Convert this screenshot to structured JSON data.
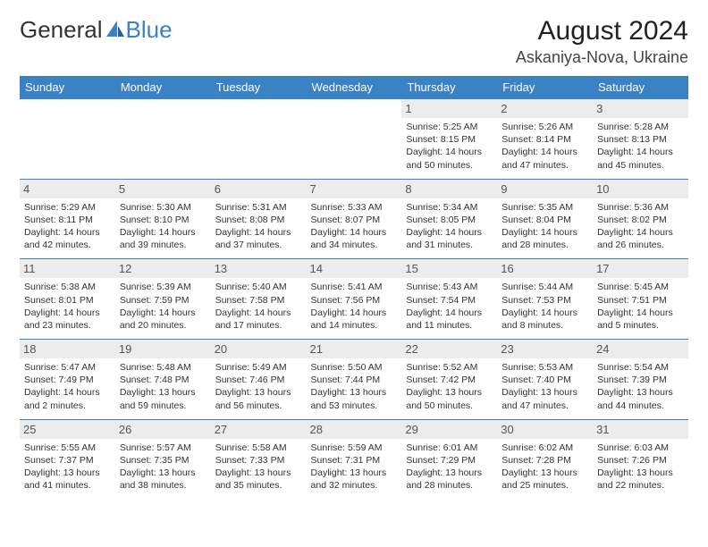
{
  "logo": {
    "part1": "General",
    "part2": "Blue",
    "icon_color": "#3b82c4"
  },
  "header": {
    "month": "August 2024",
    "location": "Askaniya-Nova, Ukraine"
  },
  "days": [
    "Sunday",
    "Monday",
    "Tuesday",
    "Wednesday",
    "Thursday",
    "Friday",
    "Saturday"
  ],
  "colors": {
    "header_bg": "#3b82c4",
    "header_text": "#ffffff",
    "daynum_bg": "#ececec",
    "border": "#3b82c4",
    "text": "#333333",
    "background": "#ffffff"
  },
  "cells": [
    {
      "n": "",
      "sr": "",
      "ss": "",
      "dl": ""
    },
    {
      "n": "",
      "sr": "",
      "ss": "",
      "dl": ""
    },
    {
      "n": "",
      "sr": "",
      "ss": "",
      "dl": ""
    },
    {
      "n": "",
      "sr": "",
      "ss": "",
      "dl": ""
    },
    {
      "n": "1",
      "sr": "Sunrise: 5:25 AM",
      "ss": "Sunset: 8:15 PM",
      "dl": "Daylight: 14 hours and 50 minutes."
    },
    {
      "n": "2",
      "sr": "Sunrise: 5:26 AM",
      "ss": "Sunset: 8:14 PM",
      "dl": "Daylight: 14 hours and 47 minutes."
    },
    {
      "n": "3",
      "sr": "Sunrise: 5:28 AM",
      "ss": "Sunset: 8:13 PM",
      "dl": "Daylight: 14 hours and 45 minutes."
    },
    {
      "n": "4",
      "sr": "Sunrise: 5:29 AM",
      "ss": "Sunset: 8:11 PM",
      "dl": "Daylight: 14 hours and 42 minutes."
    },
    {
      "n": "5",
      "sr": "Sunrise: 5:30 AM",
      "ss": "Sunset: 8:10 PM",
      "dl": "Daylight: 14 hours and 39 minutes."
    },
    {
      "n": "6",
      "sr": "Sunrise: 5:31 AM",
      "ss": "Sunset: 8:08 PM",
      "dl": "Daylight: 14 hours and 37 minutes."
    },
    {
      "n": "7",
      "sr": "Sunrise: 5:33 AM",
      "ss": "Sunset: 8:07 PM",
      "dl": "Daylight: 14 hours and 34 minutes."
    },
    {
      "n": "8",
      "sr": "Sunrise: 5:34 AM",
      "ss": "Sunset: 8:05 PM",
      "dl": "Daylight: 14 hours and 31 minutes."
    },
    {
      "n": "9",
      "sr": "Sunrise: 5:35 AM",
      "ss": "Sunset: 8:04 PM",
      "dl": "Daylight: 14 hours and 28 minutes."
    },
    {
      "n": "10",
      "sr": "Sunrise: 5:36 AM",
      "ss": "Sunset: 8:02 PM",
      "dl": "Daylight: 14 hours and 26 minutes."
    },
    {
      "n": "11",
      "sr": "Sunrise: 5:38 AM",
      "ss": "Sunset: 8:01 PM",
      "dl": "Daylight: 14 hours and 23 minutes."
    },
    {
      "n": "12",
      "sr": "Sunrise: 5:39 AM",
      "ss": "Sunset: 7:59 PM",
      "dl": "Daylight: 14 hours and 20 minutes."
    },
    {
      "n": "13",
      "sr": "Sunrise: 5:40 AM",
      "ss": "Sunset: 7:58 PM",
      "dl": "Daylight: 14 hours and 17 minutes."
    },
    {
      "n": "14",
      "sr": "Sunrise: 5:41 AM",
      "ss": "Sunset: 7:56 PM",
      "dl": "Daylight: 14 hours and 14 minutes."
    },
    {
      "n": "15",
      "sr": "Sunrise: 5:43 AM",
      "ss": "Sunset: 7:54 PM",
      "dl": "Daylight: 14 hours and 11 minutes."
    },
    {
      "n": "16",
      "sr": "Sunrise: 5:44 AM",
      "ss": "Sunset: 7:53 PM",
      "dl": "Daylight: 14 hours and 8 minutes."
    },
    {
      "n": "17",
      "sr": "Sunrise: 5:45 AM",
      "ss": "Sunset: 7:51 PM",
      "dl": "Daylight: 14 hours and 5 minutes."
    },
    {
      "n": "18",
      "sr": "Sunrise: 5:47 AM",
      "ss": "Sunset: 7:49 PM",
      "dl": "Daylight: 14 hours and 2 minutes."
    },
    {
      "n": "19",
      "sr": "Sunrise: 5:48 AM",
      "ss": "Sunset: 7:48 PM",
      "dl": "Daylight: 13 hours and 59 minutes."
    },
    {
      "n": "20",
      "sr": "Sunrise: 5:49 AM",
      "ss": "Sunset: 7:46 PM",
      "dl": "Daylight: 13 hours and 56 minutes."
    },
    {
      "n": "21",
      "sr": "Sunrise: 5:50 AM",
      "ss": "Sunset: 7:44 PM",
      "dl": "Daylight: 13 hours and 53 minutes."
    },
    {
      "n": "22",
      "sr": "Sunrise: 5:52 AM",
      "ss": "Sunset: 7:42 PM",
      "dl": "Daylight: 13 hours and 50 minutes."
    },
    {
      "n": "23",
      "sr": "Sunrise: 5:53 AM",
      "ss": "Sunset: 7:40 PM",
      "dl": "Daylight: 13 hours and 47 minutes."
    },
    {
      "n": "24",
      "sr": "Sunrise: 5:54 AM",
      "ss": "Sunset: 7:39 PM",
      "dl": "Daylight: 13 hours and 44 minutes."
    },
    {
      "n": "25",
      "sr": "Sunrise: 5:55 AM",
      "ss": "Sunset: 7:37 PM",
      "dl": "Daylight: 13 hours and 41 minutes."
    },
    {
      "n": "26",
      "sr": "Sunrise: 5:57 AM",
      "ss": "Sunset: 7:35 PM",
      "dl": "Daylight: 13 hours and 38 minutes."
    },
    {
      "n": "27",
      "sr": "Sunrise: 5:58 AM",
      "ss": "Sunset: 7:33 PM",
      "dl": "Daylight: 13 hours and 35 minutes."
    },
    {
      "n": "28",
      "sr": "Sunrise: 5:59 AM",
      "ss": "Sunset: 7:31 PM",
      "dl": "Daylight: 13 hours and 32 minutes."
    },
    {
      "n": "29",
      "sr": "Sunrise: 6:01 AM",
      "ss": "Sunset: 7:29 PM",
      "dl": "Daylight: 13 hours and 28 minutes."
    },
    {
      "n": "30",
      "sr": "Sunrise: 6:02 AM",
      "ss": "Sunset: 7:28 PM",
      "dl": "Daylight: 13 hours and 25 minutes."
    },
    {
      "n": "31",
      "sr": "Sunrise: 6:03 AM",
      "ss": "Sunset: 7:26 PM",
      "dl": "Daylight: 13 hours and 22 minutes."
    }
  ]
}
